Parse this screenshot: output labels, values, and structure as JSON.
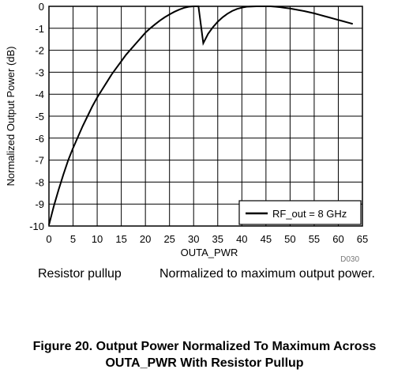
{
  "chart_data": {
    "type": "line",
    "xlabel": "OUTA_PWR",
    "ylabel": "Normalized Output Power (dB)",
    "xlim": [
      0,
      65
    ],
    "ylim": [
      -10,
      0
    ],
    "x_ticks": [
      0,
      5,
      10,
      15,
      20,
      25,
      30,
      35,
      40,
      45,
      50,
      55,
      60,
      65
    ],
    "y_ticks": [
      0,
      -1,
      -2,
      -3,
      -4,
      -5,
      -6,
      -7,
      -8,
      -9,
      -10
    ],
    "grid": true,
    "legend_position": "bottom-right",
    "series": [
      {
        "name": "RF_out = 8 GHz",
        "color": "#000000",
        "x": [
          0,
          1,
          2,
          3,
          4,
          5,
          6,
          7,
          8,
          9,
          10,
          11,
          12,
          13,
          14,
          15,
          16,
          17,
          18,
          19,
          20,
          21,
          22,
          23,
          24,
          25,
          26,
          27,
          28,
          29,
          30,
          31,
          32,
          33,
          34,
          35,
          36,
          37,
          38,
          39,
          40,
          41,
          42,
          43,
          44,
          45,
          46,
          47,
          48,
          49,
          50,
          51,
          52,
          53,
          54,
          55,
          56,
          57,
          58,
          59,
          60,
          61,
          62,
          63
        ],
        "y": [
          -9.95,
          -9.1,
          -8.35,
          -7.65,
          -7.0,
          -6.45,
          -5.95,
          -5.45,
          -5.0,
          -4.55,
          -4.15,
          -3.8,
          -3.45,
          -3.1,
          -2.8,
          -2.5,
          -2.2,
          -1.95,
          -1.7,
          -1.45,
          -1.2,
          -1.0,
          -0.82,
          -0.65,
          -0.5,
          -0.37,
          -0.25,
          -0.15,
          -0.07,
          -0.02,
          0.0,
          0.0,
          -1.68,
          -1.25,
          -0.95,
          -0.7,
          -0.5,
          -0.34,
          -0.21,
          -0.12,
          -0.06,
          -0.02,
          -0.01,
          0.0,
          0.0,
          0.0,
          0.0,
          -0.02,
          -0.04,
          -0.07,
          -0.1,
          -0.14,
          -0.18,
          -0.22,
          -0.27,
          -0.32,
          -0.38,
          -0.44,
          -0.5,
          -0.56,
          -0.62,
          -0.68,
          -0.74,
          -0.8
        ]
      }
    ]
  },
  "figure_code": "D030",
  "note_left": "Resistor pullup",
  "note_right": "Normalized to maximum output power.",
  "caption_line1": "Figure 20. Output Power Normalized To Maximum Across",
  "caption_line2": "OUTA_PWR With Resistor Pullup"
}
